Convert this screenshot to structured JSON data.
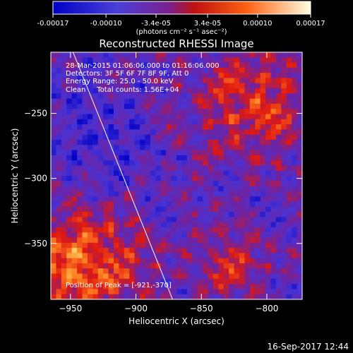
{
  "colorbar": {
    "ticks": [
      "-0.00017",
      "-0.00010",
      "-3.4e-05",
      "3.4e-05",
      "0.00010",
      "0.00017"
    ],
    "tick_values": [
      -0.00017,
      -0.0001,
      -3.4e-05,
      3.4e-05,
      0.0001,
      0.00017
    ],
    "range": [
      -0.00017,
      0.00017
    ],
    "unit_label": "(photons cm⁻² s⁻¹ asec⁻²)"
  },
  "chart_data": {
    "type": "heatmap",
    "title": "Reconstructed RHESSI Image",
    "xlabel": "Heliocentric X (arcsec)",
    "ylabel": "Heliocentric Y (arcsec)",
    "xlim": [
      -965,
      -773
    ],
    "ylim": [
      -393,
      -203
    ],
    "x_ticks": [
      -950,
      -900,
      -850,
      -800
    ],
    "y_ticks": [
      -250,
      -300,
      -350
    ],
    "annotations": [
      "28-Mar-2015 01:06:06.000 to 01:16:06.000",
      "Detectors: 3F 5F 6F 7F 8F 9F, Att 0",
      "Energy Range: 25.0 - 50.0 keV",
      "Clean     Total counts: 1.56E+04"
    ],
    "peak_label": "Position of Peak = [-921,-370]",
    "peak": [
      -921,
      -370
    ],
    "limb_line": [
      [
        -948,
        -203
      ],
      [
        -872,
        -393
      ]
    ],
    "colormap": [
      "#0000c8",
      "#4a32d2",
      "#6f22a0",
      "#e01810",
      "#ff8020",
      "#ffff90"
    ]
  },
  "footer": {
    "timestamp": "16-Sep-2017 12:44"
  }
}
